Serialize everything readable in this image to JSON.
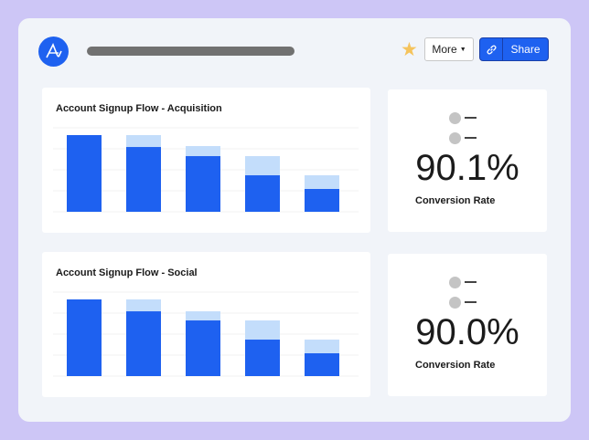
{
  "header": {
    "more_label": "More",
    "share_label": "Share",
    "logo_icon": "amplitude-logo",
    "star_icon": "star-icon",
    "link_icon": "link-icon",
    "accent": "#1e61f0"
  },
  "charts": [
    {
      "title": "Account Signup Flow - Acquisition"
    },
    {
      "title": "Account Signup Flow - Social"
    }
  ],
  "kpis": [
    {
      "value": "90.1%",
      "label": "Conversion Rate"
    },
    {
      "value": "90.0%",
      "label": "Conversion Rate"
    }
  ],
  "chart_data": [
    {
      "type": "bar",
      "stacked": true,
      "title": "Account Signup Flow - Acquisition",
      "ylim": [
        0,
        100
      ],
      "grid": true,
      "series": [
        {
          "values": [
            100,
            84.5,
            72.6,
            47.6,
            29.8
          ],
          "color": "#1e61f0"
        },
        {
          "values": [
            0,
            15.5,
            13.1,
            25,
            17.8
          ],
          "color": "#c3ddfb"
        }
      ]
    },
    {
      "type": "bar",
      "stacked": true,
      "title": "Account Signup Flow - Social",
      "ylim": [
        0,
        100
      ],
      "grid": true,
      "series": [
        {
          "values": [
            100,
            84.5,
            72.6,
            47.6,
            29.8
          ],
          "color": "#1e61f0"
        },
        {
          "values": [
            0,
            15.5,
            11.9,
            25,
            17.8
          ],
          "color": "#c3ddfb"
        }
      ]
    }
  ]
}
